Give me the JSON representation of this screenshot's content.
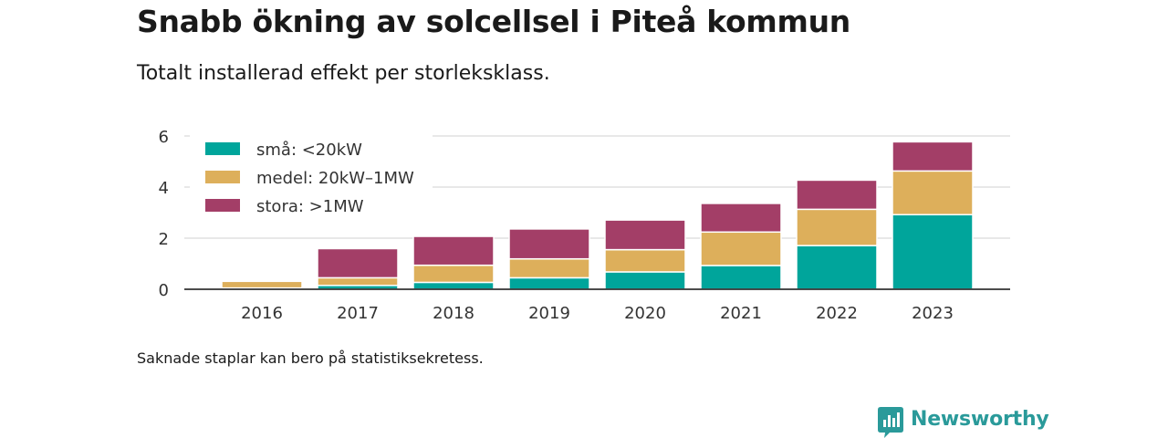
{
  "header": {
    "title": "Snabb ökning av solcellsel i Piteå kommun",
    "subtitle": "Totalt installerad effekt per storleksklass."
  },
  "footer": {
    "note": "Saknade staplar kan bero på statistiksekretess.",
    "brand_name": "Newsworthy",
    "brand_icon": "newsworthy-logo-icon"
  },
  "colors": {
    "sma": "#00a59b",
    "medel": "#ddaf5b",
    "stora": "#a33e67",
    "grid": "#d9d9d9",
    "axis": "#333333",
    "brand": "#2a9a9a"
  },
  "chart_data": {
    "type": "bar",
    "stacked": true,
    "categories": [
      "2016",
      "2017",
      "2018",
      "2019",
      "2020",
      "2021",
      "2022",
      "2023"
    ],
    "series": [
      {
        "name": "små: <20kW",
        "color": "#00a59b",
        "values": [
          0.05,
          0.15,
          0.27,
          0.45,
          0.68,
          0.93,
          1.71,
          2.92
        ]
      },
      {
        "name": "medel: 20kW–1MW",
        "color": "#ddaf5b",
        "values": [
          0.26,
          0.3,
          0.67,
          0.74,
          0.87,
          1.31,
          1.42,
          1.71
        ]
      },
      {
        "name": "stora: >1MW",
        "color": "#a33e67",
        "values": [
          0,
          1.14,
          1.13,
          1.17,
          1.16,
          1.12,
          1.14,
          1.14
        ]
      }
    ],
    "ylim": [
      0,
      6
    ],
    "yticks": [
      0,
      2,
      4,
      6
    ],
    "grid": true,
    "legend_position": "top-left",
    "xlabel": "",
    "ylabel": ""
  }
}
